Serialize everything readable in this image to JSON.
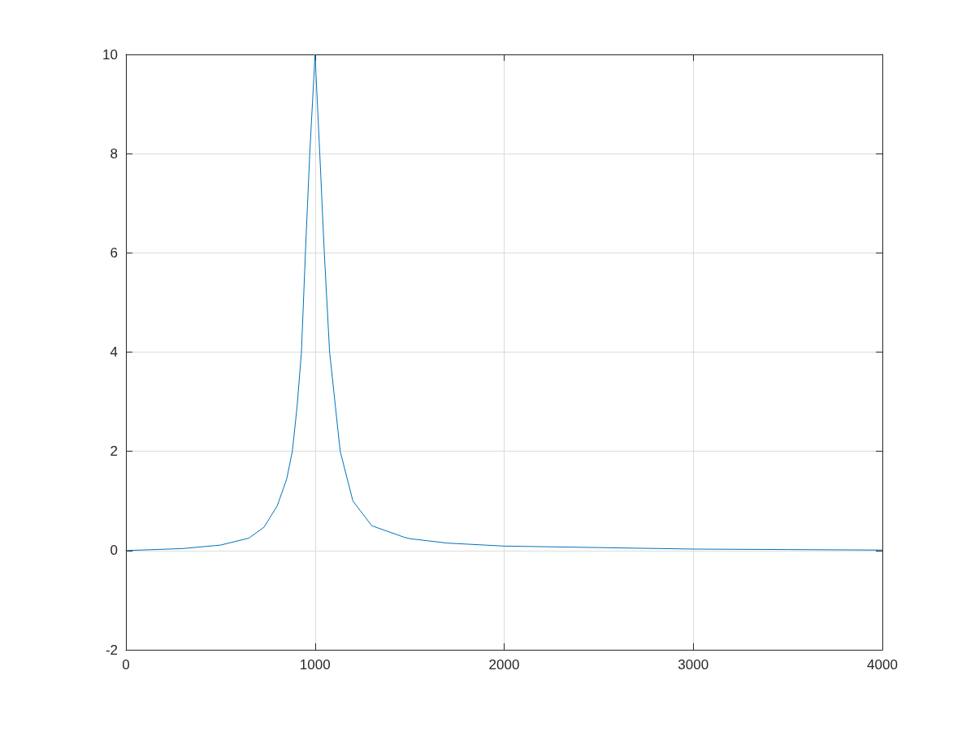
{
  "chart_data": {
    "type": "line",
    "x": [
      0,
      300,
      500,
      650,
      730,
      800,
      850,
      880,
      905,
      928,
      949,
      972,
      1000,
      1025,
      1049,
      1077,
      1133,
      1200,
      1300,
      1470,
      1500,
      1700,
      2000,
      2500,
      3000,
      3500,
      4000
    ],
    "series": [
      {
        "color": "#0072bd",
        "values": [
          0,
          0.04,
          0.11,
          0.25,
          0.47,
          0.9,
          1.44,
          2.0,
          2.9,
          4.0,
          6.0,
          8.0,
          10.0,
          8.0,
          6.0,
          4.0,
          2.0,
          1.0,
          0.5,
          0.27,
          0.24,
          0.15,
          0.09,
          0.06,
          0.03,
          0.02,
          0.01
        ]
      }
    ],
    "xlim": [
      0,
      4000
    ],
    "xticks": [
      0,
      1000,
      2000,
      3000,
      4000
    ],
    "ylim": [
      -2,
      10
    ],
    "yticks": [
      -2,
      0,
      2,
      4,
      6,
      8,
      10
    ],
    "grid": true,
    "marker": "none",
    "line_style": "solid"
  }
}
